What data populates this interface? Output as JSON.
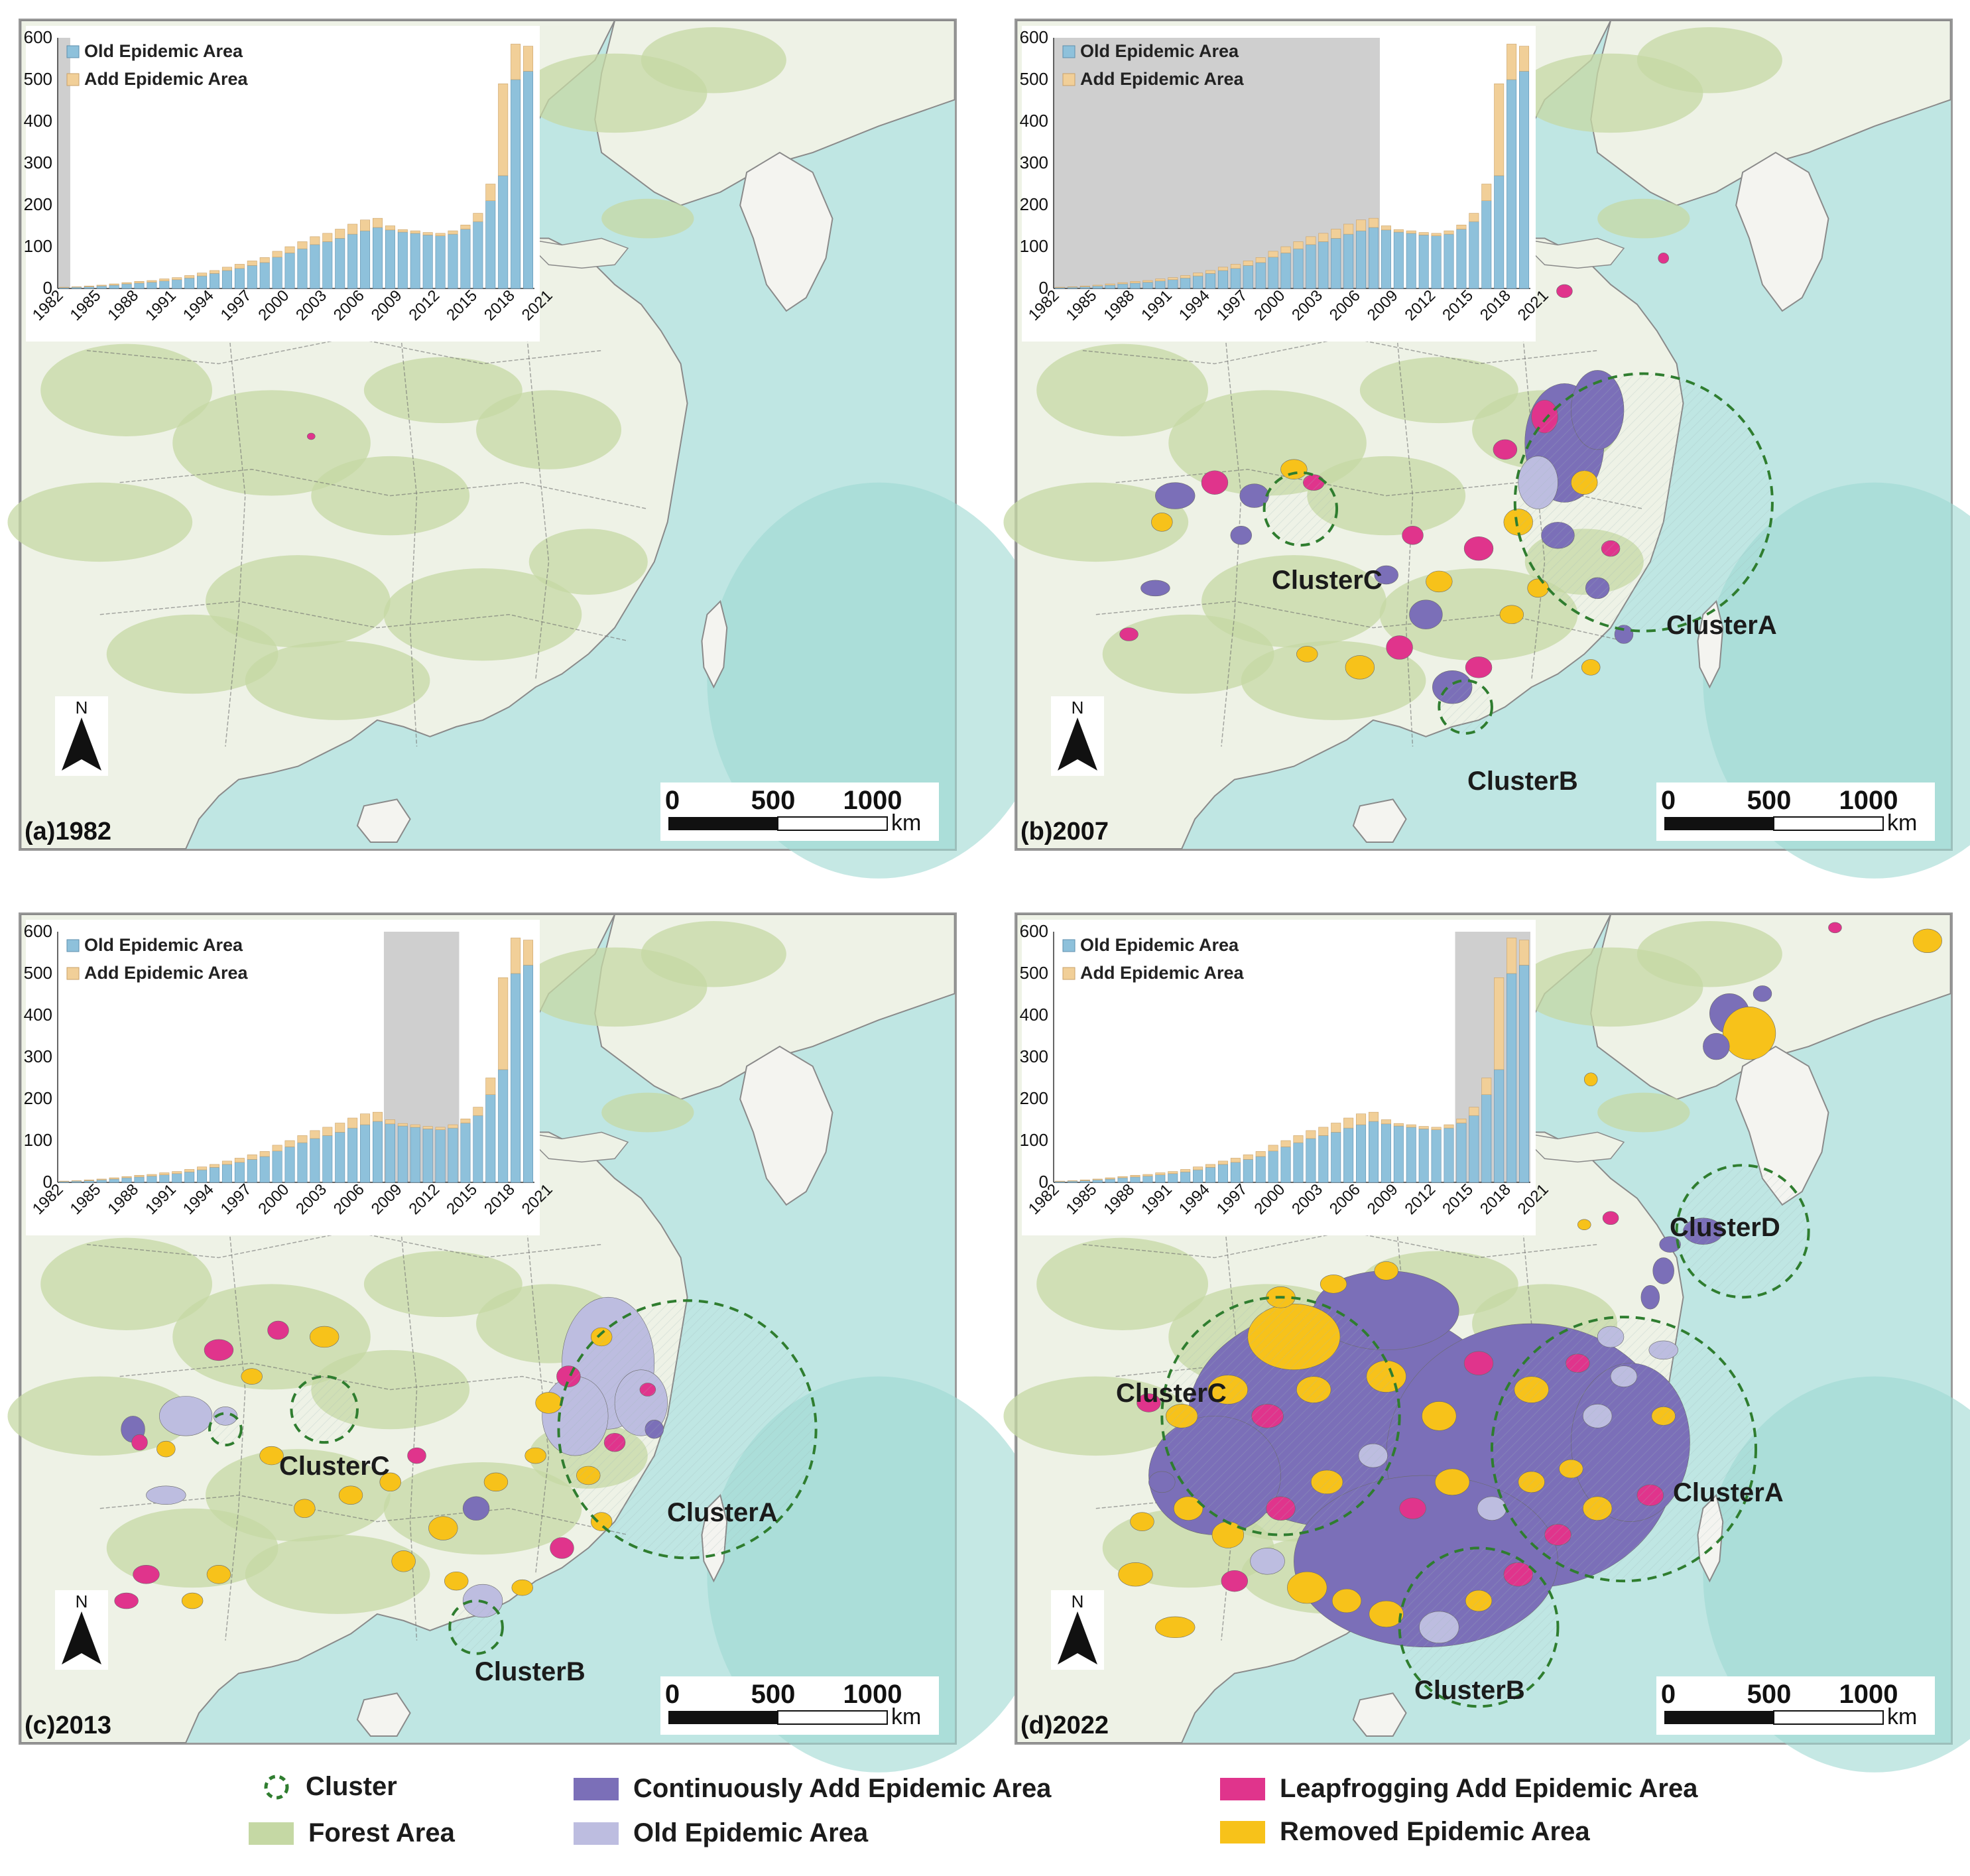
{
  "bar_series_values": {
    "old": [
      2,
      3,
      4,
      6,
      8,
      11,
      13,
      15,
      18,
      21,
      25,
      30,
      36,
      43,
      48,
      55,
      62,
      75,
      85,
      95,
      105,
      112,
      120,
      130,
      138,
      146,
      140,
      135,
      132,
      128,
      126,
      130,
      142,
      160,
      210,
      270,
      500,
      520
    ],
    "add": [
      1,
      1,
      2,
      2,
      3,
      3,
      4,
      4,
      5,
      5,
      6,
      7,
      7,
      8,
      10,
      11,
      12,
      14,
      15,
      17,
      19,
      20,
      22,
      24,
      26,
      22,
      10,
      6,
      6,
      6,
      6,
      8,
      10,
      20,
      40,
      220,
      85,
      60
    ]
  },
  "chart_axis": {
    "y_ticks": [
      "600",
      "500",
      "400",
      "300",
      "200",
      "100",
      "0"
    ],
    "x_ticks": [
      "1982",
      "1985",
      "1988",
      "1991",
      "1994",
      "1997",
      "2000",
      "2003",
      "2006",
      "2009",
      "2012",
      "2015",
      "2018",
      "2021"
    ],
    "legend_old": "Old Epidemic Area",
    "legend_add": "Add Epidemic Area"
  },
  "colors": {
    "old_bar": "#8ec1db",
    "add_bar": "#f1cf98",
    "shade": "#cfcfcf",
    "sea": "#bfe6e3",
    "land": "#eef2e6",
    "forest": "#c5d8a4",
    "continuous": "#7b6fb8",
    "old_area": "#bdbde0",
    "leapfrog": "#e0348c",
    "removed": "#f7c21a",
    "cluster": "#2f7d2f"
  },
  "panels": [
    {
      "label": "(a)1982",
      "shade_from": 0,
      "shade_to": 1,
      "clusters": []
    },
    {
      "label": "(b)2007",
      "shade_from": 0,
      "shade_to": 26,
      "clusters": [
        "ClusterA",
        "ClusterB",
        "ClusterC"
      ]
    },
    {
      "label": "(c)2013",
      "shade_from": 26,
      "shade_to": 32,
      "clusters": [
        "ClusterA",
        "ClusterB",
        "ClusterC"
      ]
    },
    {
      "label": "(d)2022",
      "shade_from": 32,
      "shade_to": 38,
      "clusters": [
        "ClusterA",
        "ClusterB",
        "ClusterC",
        "ClusterD"
      ]
    }
  ],
  "scale_bar": {
    "t0": "0",
    "t1": "500",
    "t2": "1000",
    "unit": "km"
  },
  "north_label": "N",
  "legend": {
    "cluster": "Cluster",
    "forest": "Forest Area",
    "continuous": "Continuously Add Epidemic Area",
    "old": "Old Epidemic Area",
    "leapfrog": "Leapfrogging Add Epidemic Area",
    "removed": "Removed Epidemic Area"
  }
}
